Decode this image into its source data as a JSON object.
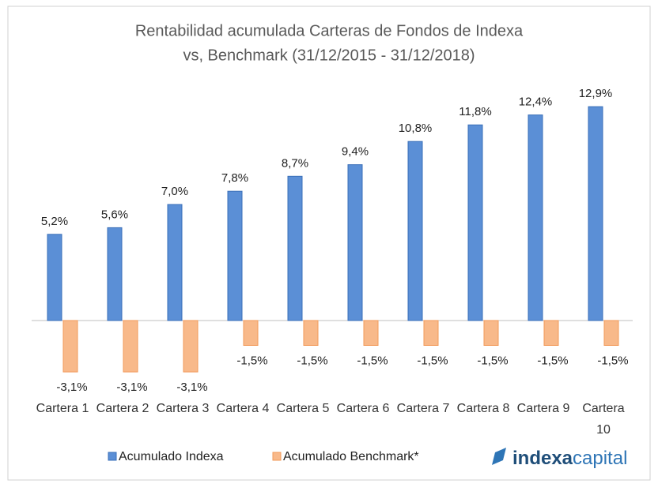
{
  "chart_data": {
    "type": "bar",
    "title": [
      "Rentabilidad acumulada Carteras de Fondos de Indexa",
      "vs, Benchmark (31/12/2015 - 31/12/2018)"
    ],
    "categories": [
      "Cartera 1",
      "Cartera 2",
      "Cartera 3",
      "Cartera 4",
      "Cartera 5",
      "Cartera 6",
      "Cartera 7",
      "Cartera 8",
      "Cartera 9",
      "Cartera 10"
    ],
    "series": [
      {
        "name": "Acumulado Indexa",
        "color": "#5b8fd6",
        "values": [
          5.2,
          5.6,
          7.0,
          7.8,
          8.7,
          9.4,
          10.8,
          11.8,
          12.4,
          12.9
        ],
        "value_labels": [
          "5,2%",
          "5,6%",
          "7,0%",
          "7,8%",
          "8,7%",
          "9,4%",
          "10,8%",
          "11,8%",
          "12,4%",
          "12,9%"
        ]
      },
      {
        "name": "Acumulado Benchmark*",
        "color": "#f8b98a",
        "values": [
          -3.1,
          -3.1,
          -3.1,
          -1.5,
          -1.5,
          -1.5,
          -1.5,
          -1.5,
          -1.5,
          -1.5
        ],
        "value_labels": [
          "-3,1%",
          "-3,1%",
          "-3,1%",
          "-1,5%",
          "-1,5%",
          "-1,5%",
          "-1,5%",
          "-1,5%",
          "-1,5%",
          "-1,5%"
        ]
      }
    ],
    "legend": "bottom"
  },
  "logo": [
    "indexa",
    "capital"
  ]
}
